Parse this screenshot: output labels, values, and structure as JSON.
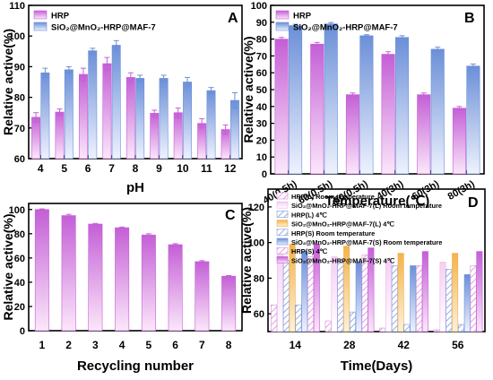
{
  "colors": {
    "pink_light": "#F4C6F2",
    "pink_dark": "#C45FD6",
    "blue_light": "#DCE6FB",
    "blue_dark": "#6B8FD8",
    "orange": "#F7C36A",
    "axis": "#000000"
  },
  "chart_data": [
    {
      "panel": "A",
      "type": "bar",
      "xlabel": "pH",
      "ylabel": "Relative active(%)",
      "ylim": [
        60,
        110
      ],
      "yticks": [
        "60",
        "70",
        "80",
        "90",
        "100",
        "110"
      ],
      "categories": [
        "4",
        "5",
        "6",
        "7",
        "8",
        "9",
        "10",
        "11",
        "12"
      ],
      "legend": {
        "placement": "top-left"
      },
      "series": [
        {
          "name": "HRP",
          "values": [
            73.5,
            75.2,
            87.5,
            91.0,
            86.5,
            74.8,
            75.0,
            71.5,
            69.5
          ],
          "errors": [
            1.5,
            1.0,
            2.0,
            2.0,
            1.5,
            1.0,
            1.5,
            1.5,
            1.5
          ]
        },
        {
          "name": "SiO₂@MnO₂-HRP@MAF-7",
          "values": [
            88.0,
            89.0,
            95.2,
            97.0,
            86.2,
            86.2,
            85.0,
            82.2,
            79.0
          ],
          "errors": [
            1.5,
            1.0,
            0.8,
            1.5,
            1.0,
            1.0,
            1.5,
            1.0,
            2.5
          ]
        }
      ]
    },
    {
      "panel": "B",
      "type": "bar",
      "xlabel": "Temperature(℃)",
      "ylabel": "Relative active(%)",
      "ylim": [
        0,
        100
      ],
      "yticks": [
        "0",
        "10",
        "20",
        "30",
        "40",
        "50",
        "60",
        "70",
        "80",
        "90",
        "100"
      ],
      "categories": [
        "40(0.5h)",
        "60(0.5h)",
        "80(0.5h)",
        "40(3h)",
        "60(3h)",
        "80(3h)"
      ],
      "legend": {
        "placement": "top-left"
      },
      "series": [
        {
          "name": "HRP",
          "values": [
            80,
            77,
            47,
            71,
            47,
            39
          ],
          "errors": [
            1.0,
            1.0,
            1.0,
            1.5,
            1.0,
            1.0
          ]
        },
        {
          "name": "SiO₂@MnO₂-HRP@MAF-7",
          "values": [
            88,
            89,
            82,
            81,
            74,
            64
          ],
          "errors": [
            0.8,
            0.8,
            0.6,
            1.0,
            1.2,
            1.2
          ]
        }
      ]
    },
    {
      "panel": "C",
      "type": "bar",
      "xlabel": "Recycling number",
      "ylabel": "Relative active(%)",
      "ylim": [
        0,
        105
      ],
      "yticks": [
        "0",
        "20",
        "40",
        "60",
        "80",
        "100"
      ],
      "categories": [
        "1",
        "2",
        "3",
        "4",
        "5",
        "6",
        "7",
        "8"
      ],
      "series": [
        {
          "name": "",
          "values": [
            100,
            95,
            88,
            85,
            79,
            71,
            57,
            45
          ],
          "errors": [
            0.5,
            1.0,
            0.5,
            0.5,
            1.0,
            0.8,
            0.8,
            0.5
          ]
        }
      ]
    },
    {
      "panel": "D",
      "type": "bar",
      "xlabel": "Time(Days)",
      "ylabel": "Relative active(%)",
      "ylim": [
        50,
        130
      ],
      "yticks": [
        "60",
        "80",
        "100",
        "120"
      ],
      "categories": [
        "14",
        "28",
        "42",
        "56"
      ],
      "legend": {
        "placement": "top-left"
      },
      "series": [
        {
          "name": "HRP(L) Room temperature",
          "values": [
            65,
            56,
            52,
            51
          ]
        },
        {
          "name": "SiO₂@MnO₂-HRP@MAF-7(L) Room temperature",
          "values": [
            96,
            92,
            90,
            89
          ]
        },
        {
          "name": "HRP(L) 4℃",
          "values": [
            90,
            89,
            87,
            85
          ]
        },
        {
          "name": "SiO₂@MnO₂-HRP@MAF-7(L) 4℃",
          "values": [
            99,
            98,
            94,
            94
          ]
        },
        {
          "name": "HRP(S) Room temperature",
          "values": [
            65,
            61,
            54,
            54
          ]
        },
        {
          "name": "SiO₂@MnO₂-HRP@MAF-7(S) Room temperature",
          "values": [
            95,
            89,
            87,
            82
          ]
        },
        {
          "name": "HRP(S) 4℃",
          "values": [
            92,
            93,
            87,
            87
          ]
        },
        {
          "name": "SiO₂@MnO₂-HRP@MAF-7(S) 4℃",
          "values": [
            99,
            97,
            95,
            95
          ]
        }
      ]
    }
  ]
}
